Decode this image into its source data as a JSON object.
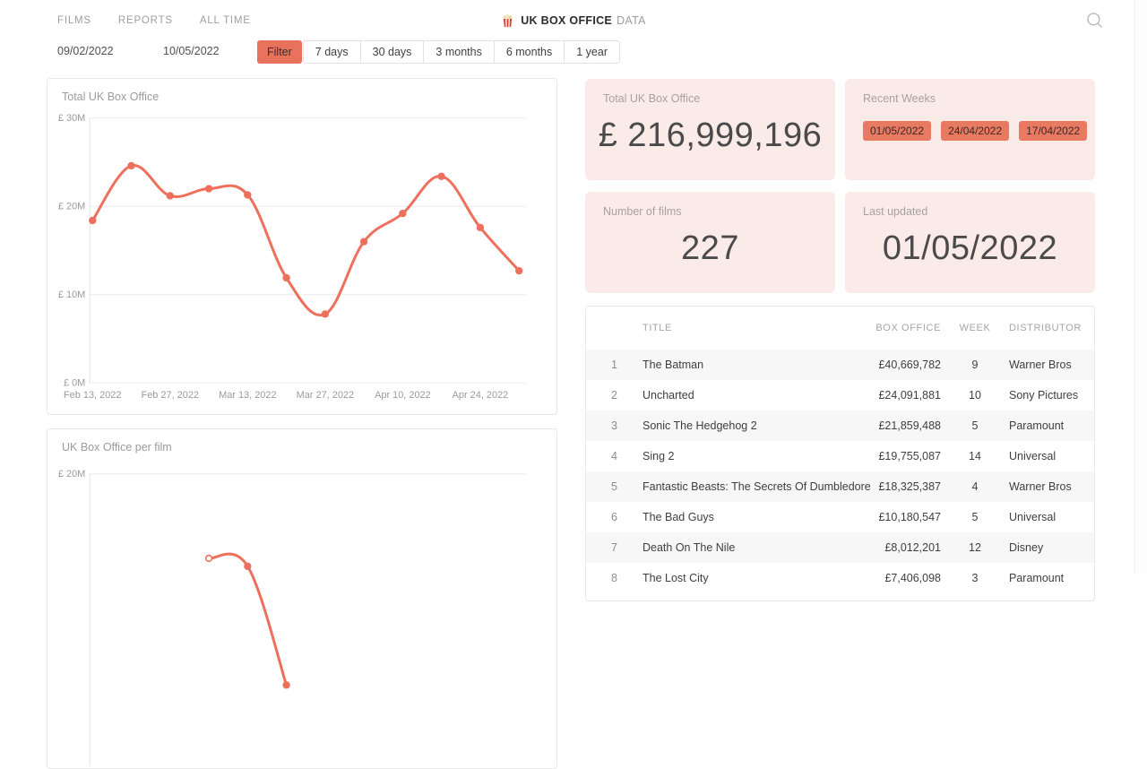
{
  "nav": {
    "items": [
      "Films",
      "Reports",
      "All time"
    ],
    "title_main": "UK BOX OFFICE",
    "title_suffix": "DATA"
  },
  "filter_bar": {
    "date_from": "09/02/2022",
    "date_to": "10/05/2022",
    "filter_label": "Filter",
    "ranges": [
      "7 days",
      "30 days",
      "3 months",
      "6 months",
      "1 year"
    ]
  },
  "cards": {
    "total": {
      "label": "Total UK Box Office",
      "value": "£ 216,999,196"
    },
    "recent_weeks": {
      "label": "Recent Weeks",
      "weeks": [
        "01/05/2022",
        "24/04/2022",
        "17/04/2022"
      ]
    },
    "films": {
      "label": "Number of films",
      "value": "227"
    },
    "updated": {
      "label": "Last updated",
      "value": "01/05/2022"
    }
  },
  "table": {
    "headers": [
      "TITLE",
      "BOX OFFICE",
      "WEEK",
      "DISTRIBUTOR"
    ],
    "rows": [
      {
        "rank": 1,
        "title": "The Batman",
        "box_office": "£40,669,782",
        "week": 9,
        "distributor": "Warner Bros"
      },
      {
        "rank": 2,
        "title": "Uncharted",
        "box_office": "£24,091,881",
        "week": 10,
        "distributor": "Sony Pictures"
      },
      {
        "rank": 3,
        "title": "Sonic The Hedgehog 2",
        "box_office": "£21,859,488",
        "week": 5,
        "distributor": "Paramount"
      },
      {
        "rank": 4,
        "title": "Sing 2",
        "box_office": "£19,755,087",
        "week": 14,
        "distributor": "Universal"
      },
      {
        "rank": 5,
        "title": "Fantastic Beasts: The Secrets Of Dumbledore",
        "box_office": "£18,325,387",
        "week": 4,
        "distributor": "Warner Bros"
      },
      {
        "rank": 6,
        "title": "The Bad Guys",
        "box_office": "£10,180,547",
        "week": 5,
        "distributor": "Universal"
      },
      {
        "rank": 7,
        "title": "Death On The Nile",
        "box_office": "£8,012,201",
        "week": 12,
        "distributor": "Disney"
      },
      {
        "rank": 8,
        "title": "The Lost City",
        "box_office": "£7,406,098",
        "week": 3,
        "distributor": "Paramount"
      }
    ]
  },
  "chart_data": [
    {
      "type": "line",
      "title": "Total UK Box Office",
      "x": [
        "Feb 13, 2022",
        "Feb 20, 2022",
        "Feb 27, 2022",
        "Mar 6, 2022",
        "Mar 13, 2022",
        "Mar 20, 2022",
        "Mar 27, 2022",
        "Apr 3, 2022",
        "Apr 10, 2022",
        "Apr 17, 2022",
        "Apr 24, 2022",
        "May 1, 2022"
      ],
      "values_millions": [
        18.4,
        24.6,
        21.2,
        22.0,
        21.3,
        11.9,
        7.8,
        16.0,
        19.2,
        23.4,
        17.6,
        12.7
      ],
      "x_tick_labels": [
        "Feb 13, 2022",
        "Feb 27, 2022",
        "Mar 13, 2022",
        "Mar 27, 2022",
        "Apr 10, 2022",
        "Apr 24, 2022"
      ],
      "y_ticks": [
        {
          "label": "£ 30M",
          "value": 30
        },
        {
          "label": "£ 20M",
          "value": 20
        },
        {
          "label": "£ 10M",
          "value": 10
        },
        {
          "label": "£ 0M",
          "value": 0
        }
      ],
      "ylim": [
        0,
        30
      ],
      "ylabel": "",
      "xlabel": "",
      "grid": true,
      "legend": false,
      "line_color": "#ee6f5b"
    },
    {
      "type": "line",
      "title": "UK Box Office per film",
      "x": [
        "Feb 13, 2022",
        "Feb 20, 2022",
        "Feb 27, 2022",
        "Mar 6, 2022",
        "Mar 13, 2022",
        "Mar 20, 2022"
      ],
      "values_millions": [
        null,
        null,
        null,
        13.6,
        13.0,
        4.0
      ],
      "x_tick_labels": [],
      "y_ticks": [
        {
          "label": "£ 20M",
          "value": 20
        }
      ],
      "ylim": [
        0,
        20
      ],
      "grid": true,
      "legend": false,
      "note": "chart partially cut off by viewport; line starts with an open marker",
      "line_color": "#ee6f5b"
    }
  ]
}
